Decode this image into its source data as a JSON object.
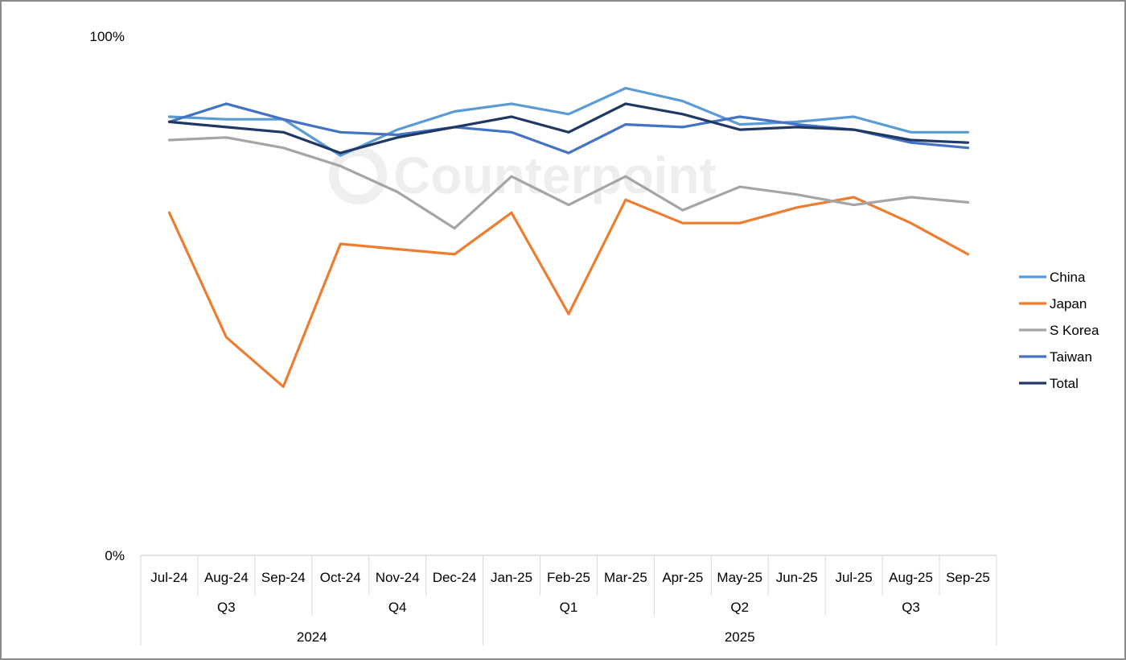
{
  "chart_data": {
    "type": "line",
    "title": "",
    "xlabel": "",
    "ylabel": "",
    "ylim": [
      0,
      100
    ],
    "y_tick_labels": [
      "0%",
      "100%"
    ],
    "categories": [
      "Jul-24",
      "Aug-24",
      "Sep-24",
      "Oct-24",
      "Nov-24",
      "Dec-24",
      "Jan-25",
      "Feb-25",
      "Mar-25",
      "Apr-25",
      "May-25",
      "Jun-25",
      "Jul-25",
      "Aug-25",
      "Sep-25"
    ],
    "quarters": [
      {
        "label": "Q3",
        "span": 3
      },
      {
        "label": "Q4",
        "span": 3
      },
      {
        "label": "Q1",
        "span": 3
      },
      {
        "label": "Q2",
        "span": 3
      },
      {
        "label": "Q3",
        "span": 3
      }
    ],
    "years": [
      {
        "label": "2024",
        "span": 6
      },
      {
        "label": "2025",
        "span": 9
      }
    ],
    "series": [
      {
        "name": "China",
        "color": "#5b9bd5",
        "values": [
          84.5,
          84,
          84,
          77,
          82,
          85.5,
          87,
          85,
          90,
          87.5,
          83,
          83.5,
          84.5,
          81.5,
          81.5
        ]
      },
      {
        "name": "Japan",
        "color": "#ed7d31",
        "values": [
          66,
          42,
          32.5,
          60,
          59,
          58,
          66,
          46.5,
          68.5,
          64,
          64,
          67,
          69,
          64,
          58
        ]
      },
      {
        "name": "S Korea",
        "color": "#a5a5a5",
        "values": [
          80,
          80.5,
          78.5,
          75,
          70,
          63,
          73,
          67.5,
          73,
          66.5,
          71,
          69.5,
          67.5,
          69,
          68
        ]
      },
      {
        "name": "Taiwan",
        "color": "#4472c4",
        "values": [
          83.5,
          87,
          84,
          81.5,
          81,
          82.5,
          81.5,
          77.5,
          83,
          82.5,
          84.5,
          83,
          82,
          79.5,
          78.5
        ]
      },
      {
        "name": "Total",
        "color": "#1f3864",
        "values": [
          83.5,
          82.5,
          81.5,
          77.5,
          80.5,
          82.5,
          84.5,
          81.5,
          87,
          85,
          82,
          82.5,
          82,
          80,
          79.5
        ]
      }
    ],
    "legend": "right",
    "grid": false
  },
  "watermark": "Counterpoint"
}
